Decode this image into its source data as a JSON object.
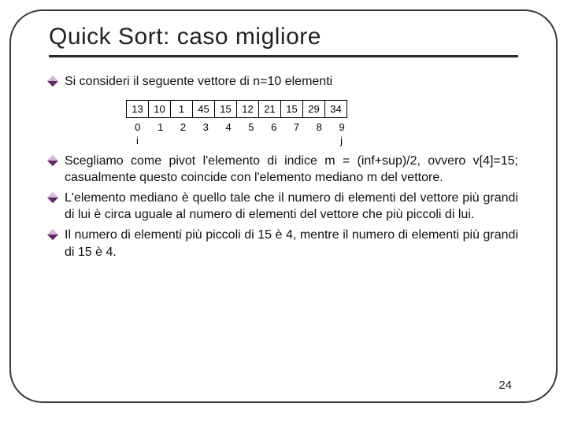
{
  "title": "Quick Sort: caso migliore",
  "bullets": {
    "b0": "Si consideri il seguente vettore di n=10 elementi",
    "b1": "Scegliamo come pivot l'elemento di indice m = (inf+sup)/2, ovvero v[4]=15; casualmente questo coincide con l'elemento mediano m del vettore.",
    "b2": "L'elemento mediano è quello tale che il numero di elementi del vettore più grandi di lui è circa uguale al numero di elementi del vettore che più piccoli di lui.",
    "b3": "Il numero di elementi più piccoli di 15 è 4, mentre il numero di elementi più grandi di 15 è 4."
  },
  "array": {
    "values": [
      "13",
      "10",
      "1",
      "45",
      "15",
      "12",
      "21",
      "15",
      "29",
      "34"
    ],
    "indices": [
      "0",
      "1",
      "2",
      "3",
      "4",
      "5",
      "6",
      "7",
      "8",
      "9"
    ],
    "i_label": "i",
    "j_label": "j",
    "colors": {
      "cell_bg": "#ffffff",
      "border": "#000000",
      "text": "#000000"
    }
  },
  "page_number": "24"
}
